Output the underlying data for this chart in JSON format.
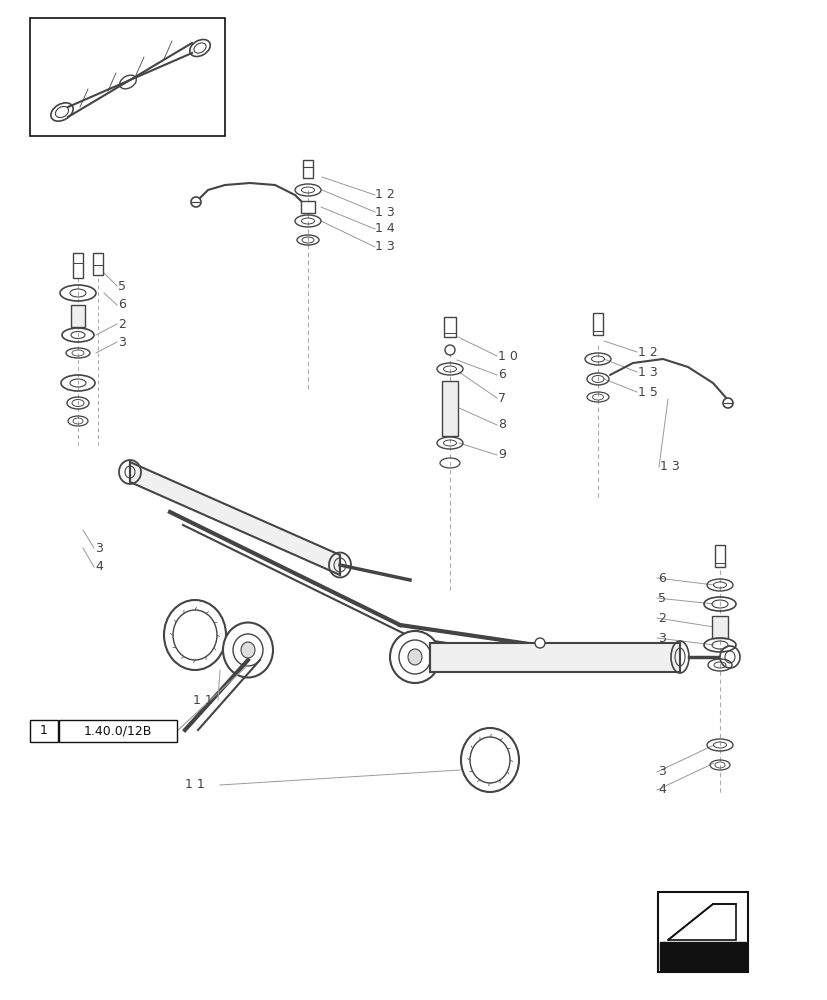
{
  "bg_color": "#ffffff",
  "lc": "#999999",
  "dc": "#444444",
  "black": "#111111"
}
